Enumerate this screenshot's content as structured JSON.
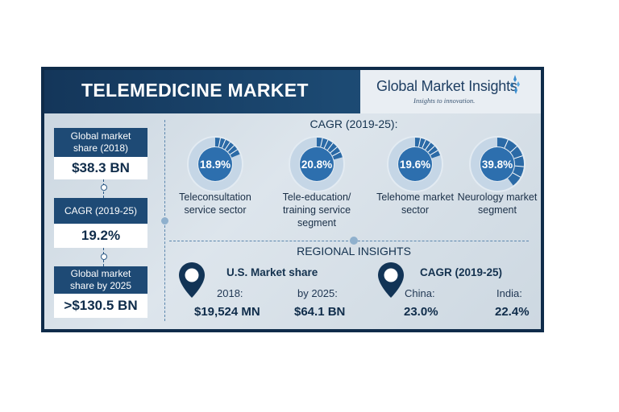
{
  "title": "TELEMEDICINE MARKET",
  "logo": {
    "name": "Global Market Insights",
    "tagline": "Insights to innovation."
  },
  "stats": [
    {
      "label": "Global market share (2018)",
      "value": "$38.3 BN"
    },
    {
      "label": "CAGR (2019-25)",
      "value": "19.2%"
    },
    {
      "label": "Global market share by 2025",
      "value": ">$130.5 BN"
    }
  ],
  "cagr_title": "CAGR (2019-25):",
  "regional": {
    "title": "REGIONAL INSIGHTS",
    "us": {
      "heading": "U.S. Market share",
      "left_label": "2018:",
      "left_value": "$19,524 MN",
      "right_label": "by 2025:",
      "right_value": "$64.1 BN"
    },
    "cagr": {
      "heading": "CAGR (2019-25)",
      "left_label": "China:",
      "left_value": "23.0%",
      "right_label": "India:",
      "right_value": "22.4%"
    }
  },
  "colors": {
    "dark_navy": "#0f2c4a",
    "label_blue": "#1e4a75",
    "ring_fill": "#2b6aa6",
    "ring_track": "#c5d6e6"
  },
  "chart_data": {
    "type": "pie",
    "title": "CAGR (2019-25):",
    "unit": "%",
    "segments": [
      {
        "name": "Teleconsultation service sector",
        "value": 18.9,
        "label": "18.9%"
      },
      {
        "name": "Tele-education/ training service segment",
        "value": 20.8,
        "label": "20.8%"
      },
      {
        "name": "Telehome market sector",
        "value": 19.6,
        "label": "19.6%"
      },
      {
        "name": "Neurology market segment",
        "value": 39.8,
        "label": "39.8%"
      }
    ]
  }
}
